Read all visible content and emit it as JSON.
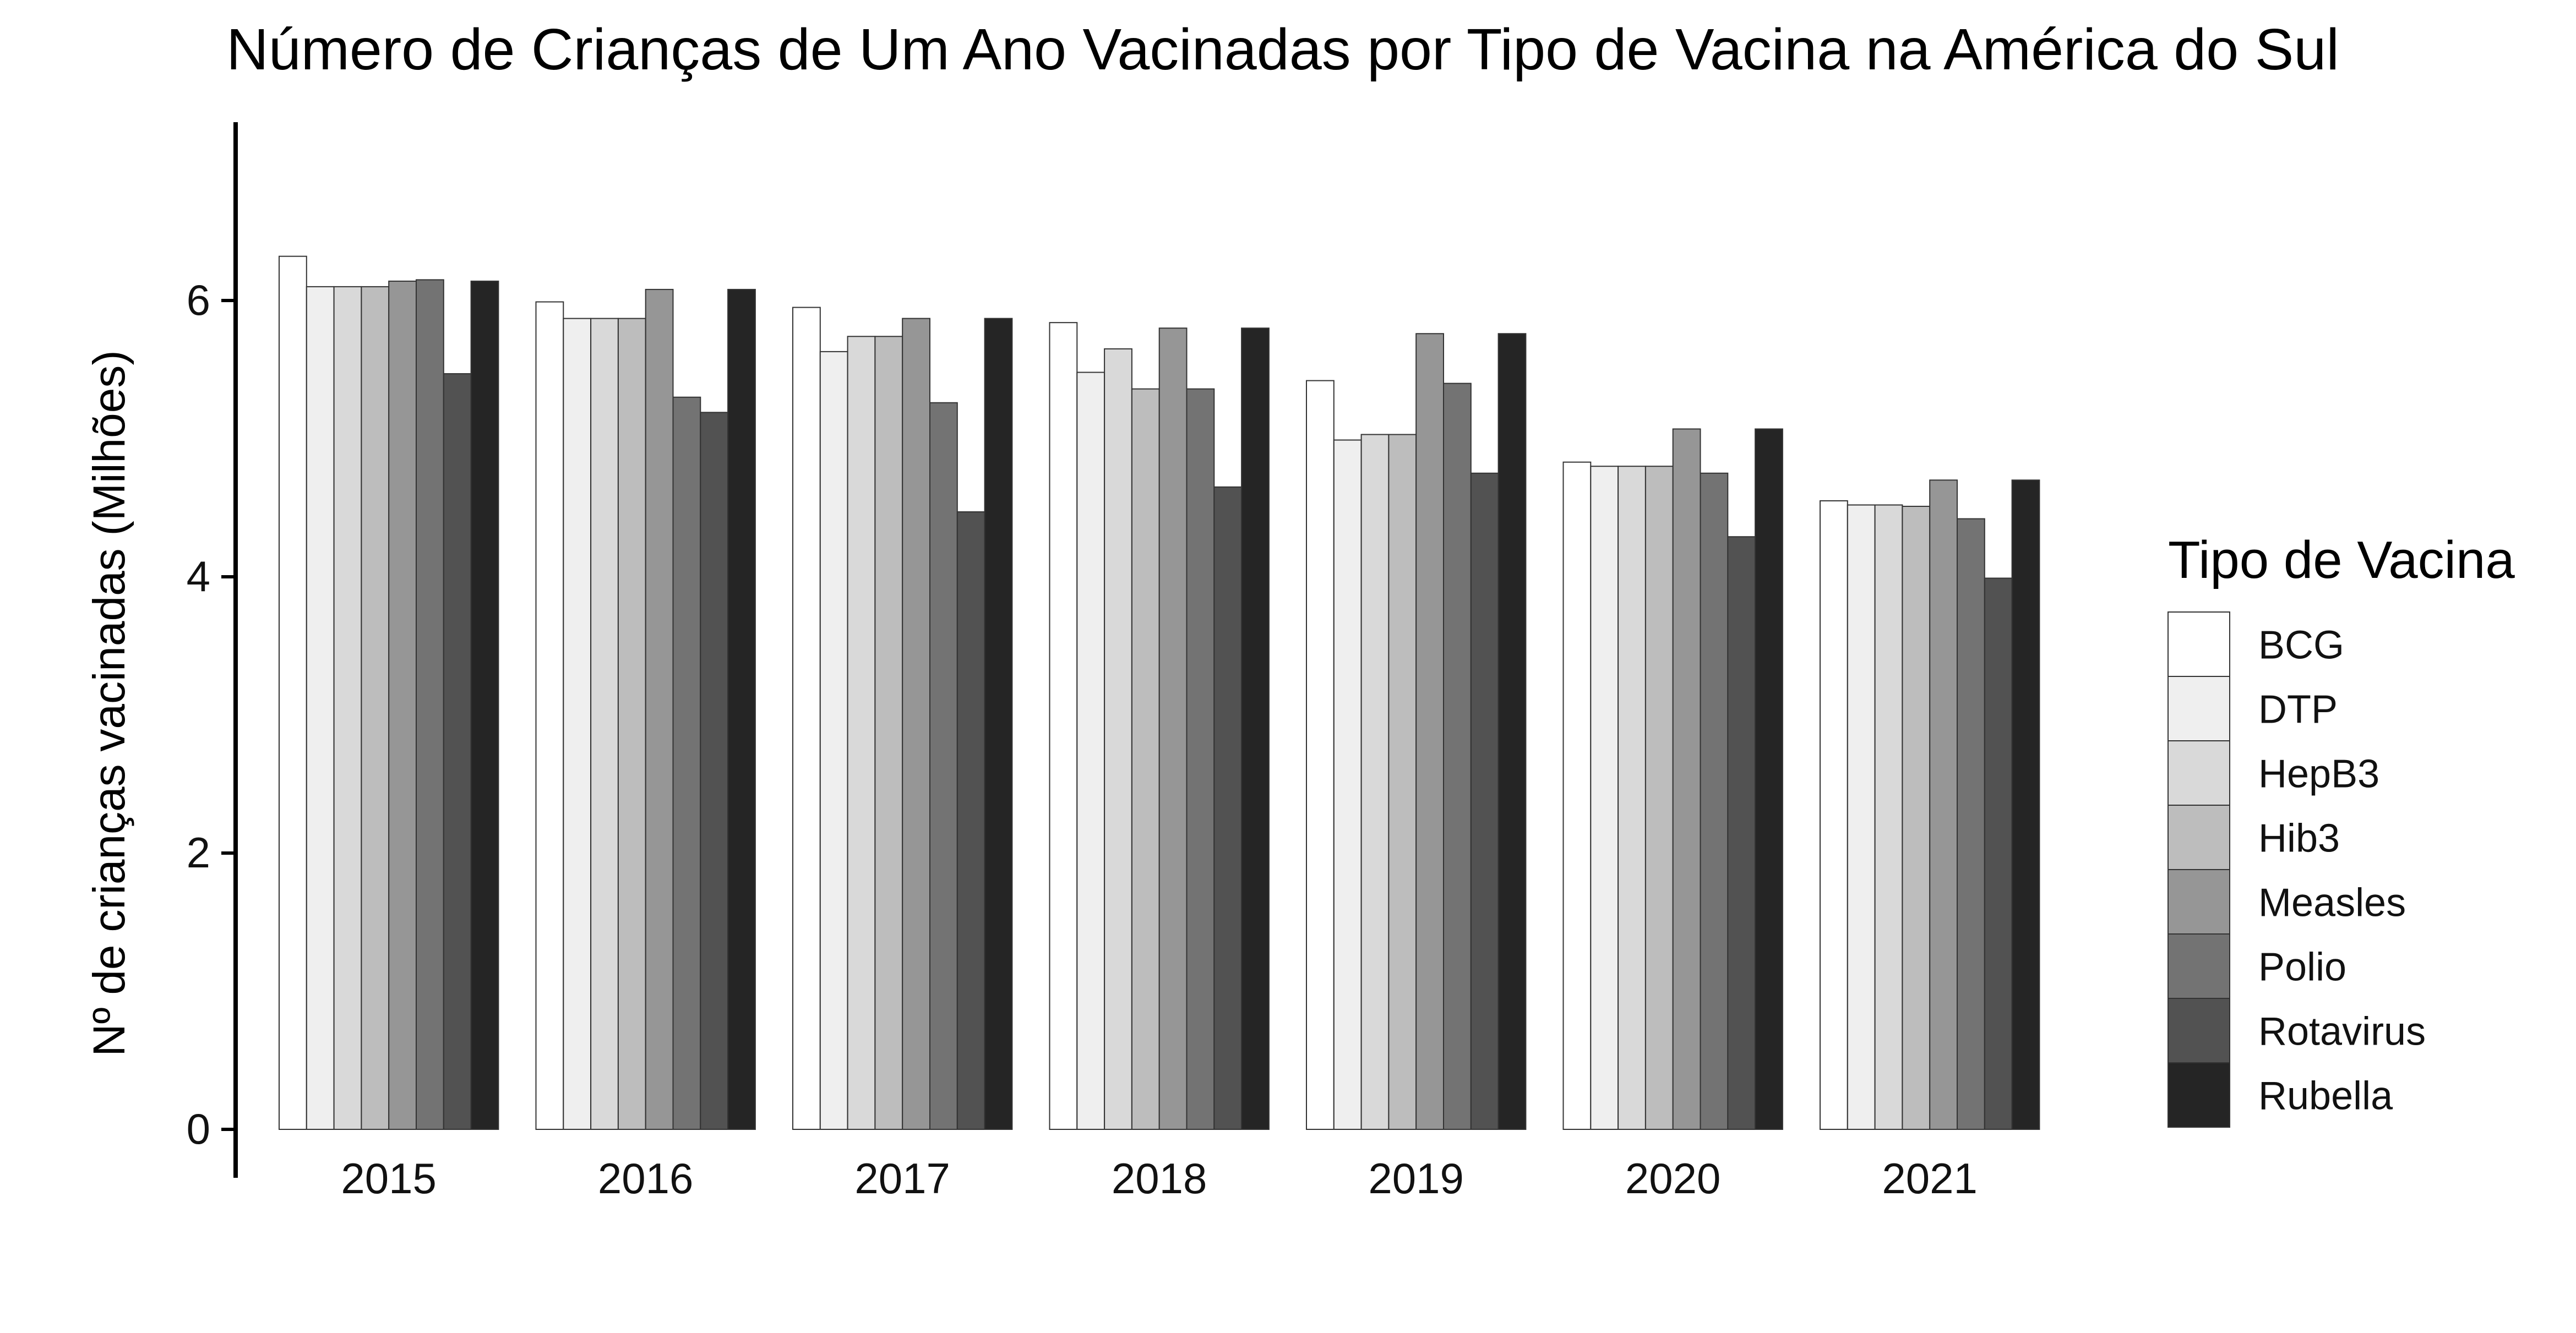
{
  "chart_data": {
    "type": "bar",
    "title": "Número de Crianças de Um Ano Vacinadas por Tipo de Vacina na América do Sul",
    "xlabel": "",
    "ylabel": "Nº de crianças vacinadas (Milhões)",
    "ylim": [
      0,
      7.3
    ],
    "yticks": [
      0,
      2,
      4,
      6
    ],
    "grid": false,
    "legend_title": "Tipo de Vacina",
    "legend_position": "right",
    "categories": [
      "2015",
      "2016",
      "2017",
      "2018",
      "2019",
      "2020",
      "2021"
    ],
    "series": [
      {
        "name": "BCG",
        "color": "#ffffff",
        "values": [
          6.32,
          5.99,
          5.95,
          5.84,
          5.42,
          4.83,
          4.55
        ]
      },
      {
        "name": "DTP",
        "color": "#efefef",
        "values": [
          6.1,
          5.87,
          5.63,
          5.48,
          4.99,
          4.8,
          4.52
        ]
      },
      {
        "name": "HepB3",
        "color": "#d9d9d9",
        "values": [
          6.1,
          5.87,
          5.74,
          5.65,
          5.03,
          4.8,
          4.52
        ]
      },
      {
        "name": "Hib3",
        "color": "#bdbdbd",
        "values": [
          6.1,
          5.87,
          5.74,
          5.36,
          5.03,
          4.8,
          4.51
        ]
      },
      {
        "name": "Measles",
        "color": "#969696",
        "values": [
          6.14,
          6.08,
          5.87,
          5.8,
          5.76,
          5.07,
          4.7
        ]
      },
      {
        "name": "Polio",
        "color": "#737373",
        "values": [
          6.15,
          5.3,
          5.26,
          5.36,
          5.4,
          4.75,
          4.42
        ]
      },
      {
        "name": "Rotavirus",
        "color": "#525252",
        "values": [
          5.47,
          5.19,
          4.47,
          4.65,
          4.75,
          4.29,
          3.99
        ]
      },
      {
        "name": "Rubella",
        "color": "#252525",
        "values": [
          6.14,
          6.08,
          5.87,
          5.8,
          5.76,
          5.07,
          4.7
        ]
      }
    ]
  }
}
